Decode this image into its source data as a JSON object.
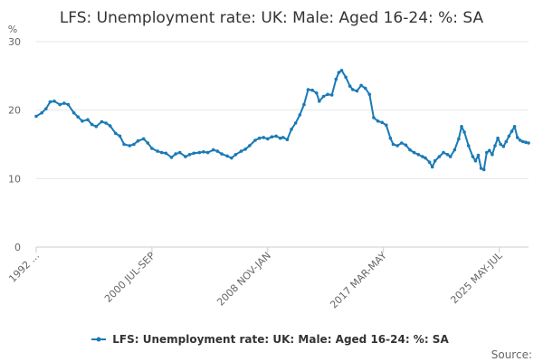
{
  "chart_data": {
    "type": "line",
    "title": "LFS: Unemployment rate: UK: Male: Aged 16-24: %: SA",
    "ylabel": "%",
    "xlabel": "",
    "ylim": [
      0,
      30
    ],
    "yticks": [
      0,
      10,
      20,
      30
    ],
    "grid": true,
    "legend_position": "bottom",
    "color": "#1a7ab5",
    "x_start": "1992",
    "x_end": "2025",
    "xtick_labels": [
      {
        "label": "1992 ...",
        "x": 1992.3
      },
      {
        "label": "2000 JUL-SEP",
        "x": 2000.6
      },
      {
        "label": "2008 NOV-JAN",
        "x": 2008.9
      },
      {
        "label": "2017 MAR-MAY",
        "x": 2017.2
      },
      {
        "label": "2025 MAY-JUL",
        "x": 2025.5
      }
    ],
    "series": [
      {
        "name": "LFS: Unemployment rate: UK: Male: Aged 16-24: %: SA",
        "points": [
          [
            1992.3,
            19.1
          ],
          [
            1992.7,
            19.6
          ],
          [
            1993.0,
            20.2
          ],
          [
            1993.3,
            21.2
          ],
          [
            1993.6,
            21.3
          ],
          [
            1994.0,
            20.8
          ],
          [
            1994.3,
            21.0
          ],
          [
            1994.6,
            20.8
          ],
          [
            1995.0,
            19.6
          ],
          [
            1995.3,
            19.0
          ],
          [
            1995.6,
            18.4
          ],
          [
            1996.0,
            18.6
          ],
          [
            1996.3,
            17.9
          ],
          [
            1996.6,
            17.6
          ],
          [
            1997.0,
            18.3
          ],
          [
            1997.3,
            18.1
          ],
          [
            1997.6,
            17.7
          ],
          [
            1998.0,
            16.6
          ],
          [
            1998.3,
            16.2
          ],
          [
            1998.6,
            15.0
          ],
          [
            1999.0,
            14.8
          ],
          [
            1999.3,
            15.0
          ],
          [
            1999.6,
            15.5
          ],
          [
            2000.0,
            15.8
          ],
          [
            2000.3,
            15.2
          ],
          [
            2000.6,
            14.4
          ],
          [
            2001.0,
            14.0
          ],
          [
            2001.3,
            13.8
          ],
          [
            2001.6,
            13.7
          ],
          [
            2002.0,
            13.1
          ],
          [
            2002.3,
            13.6
          ],
          [
            2002.6,
            13.8
          ],
          [
            2003.0,
            13.2
          ],
          [
            2003.3,
            13.5
          ],
          [
            2003.6,
            13.7
          ],
          [
            2004.0,
            13.8
          ],
          [
            2004.3,
            13.9
          ],
          [
            2004.6,
            13.8
          ],
          [
            2005.0,
            14.2
          ],
          [
            2005.3,
            14.0
          ],
          [
            2005.6,
            13.6
          ],
          [
            2006.0,
            13.3
          ],
          [
            2006.3,
            13.0
          ],
          [
            2006.6,
            13.5
          ],
          [
            2007.0,
            14.0
          ],
          [
            2007.3,
            14.3
          ],
          [
            2007.6,
            14.8
          ],
          [
            2008.0,
            15.6
          ],
          [
            2008.3,
            15.9
          ],
          [
            2008.6,
            16.0
          ],
          [
            2008.9,
            15.8
          ],
          [
            2009.2,
            16.1
          ],
          [
            2009.5,
            16.2
          ],
          [
            2009.8,
            15.9
          ],
          [
            2010.0,
            16.0
          ],
          [
            2010.3,
            15.7
          ],
          [
            2010.6,
            17.2
          ],
          [
            2010.9,
            18.1
          ],
          [
            2011.2,
            19.3
          ],
          [
            2011.5,
            20.8
          ],
          [
            2011.8,
            23.0
          ],
          [
            2012.1,
            22.9
          ],
          [
            2012.4,
            22.5
          ],
          [
            2012.6,
            21.3
          ],
          [
            2012.9,
            22.0
          ],
          [
            2013.2,
            22.3
          ],
          [
            2013.5,
            22.2
          ],
          [
            2013.8,
            24.5
          ],
          [
            2014.0,
            25.5
          ],
          [
            2014.2,
            25.8
          ],
          [
            2014.5,
            24.8
          ],
          [
            2014.8,
            23.5
          ],
          [
            2015.0,
            23.0
          ],
          [
            2015.3,
            22.8
          ],
          [
            2015.6,
            23.6
          ],
          [
            2015.9,
            23.2
          ],
          [
            2016.2,
            22.3
          ],
          [
            2016.5,
            18.9
          ],
          [
            2016.8,
            18.4
          ],
          [
            2017.1,
            18.2
          ],
          [
            2017.4,
            17.8
          ],
          [
            2017.7,
            15.9
          ],
          [
            2017.9,
            15.0
          ],
          [
            2018.2,
            14.8
          ],
          [
            2018.5,
            15.2
          ],
          [
            2018.8,
            14.9
          ],
          [
            2019.1,
            14.2
          ],
          [
            2019.4,
            13.8
          ],
          [
            2019.7,
            13.5
          ],
          [
            2020.0,
            13.2
          ],
          [
            2020.2,
            13.0
          ],
          [
            2020.5,
            12.4
          ],
          [
            2020.7,
            11.7
          ],
          [
            2020.9,
            12.6
          ],
          [
            2021.2,
            13.2
          ],
          [
            2021.5,
            13.8
          ],
          [
            2021.8,
            13.5
          ],
          [
            2022.0,
            13.2
          ],
          [
            2022.3,
            14.2
          ],
          [
            2022.6,
            15.8
          ],
          [
            2022.8,
            17.6
          ],
          [
            2023.0,
            16.8
          ],
          [
            2023.3,
            14.8
          ],
          [
            2023.6,
            13.2
          ],
          [
            2023.8,
            12.6
          ],
          [
            2024.0,
            13.4
          ],
          [
            2024.2,
            11.5
          ],
          [
            2024.4,
            11.3
          ],
          [
            2024.6,
            13.8
          ],
          [
            2024.8,
            14.1
          ],
          [
            2025.0,
            13.5
          ],
          [
            2025.2,
            14.8
          ],
          [
            2025.4,
            15.9
          ],
          [
            2025.6,
            15.0
          ],
          [
            2025.8,
            14.7
          ],
          [
            2026.0,
            15.4
          ],
          [
            2026.2,
            16.2
          ],
          [
            2026.4,
            16.9
          ],
          [
            2026.6,
            17.6
          ],
          [
            2026.8,
            16.0
          ],
          [
            2027.0,
            15.6
          ],
          [
            2027.2,
            15.4
          ],
          [
            2027.4,
            15.3
          ],
          [
            2027.6,
            15.2
          ]
        ]
      }
    ],
    "legend": "LFS: Unemployment rate: UK: Male: Aged 16-24: %: SA",
    "source": "Source:"
  }
}
